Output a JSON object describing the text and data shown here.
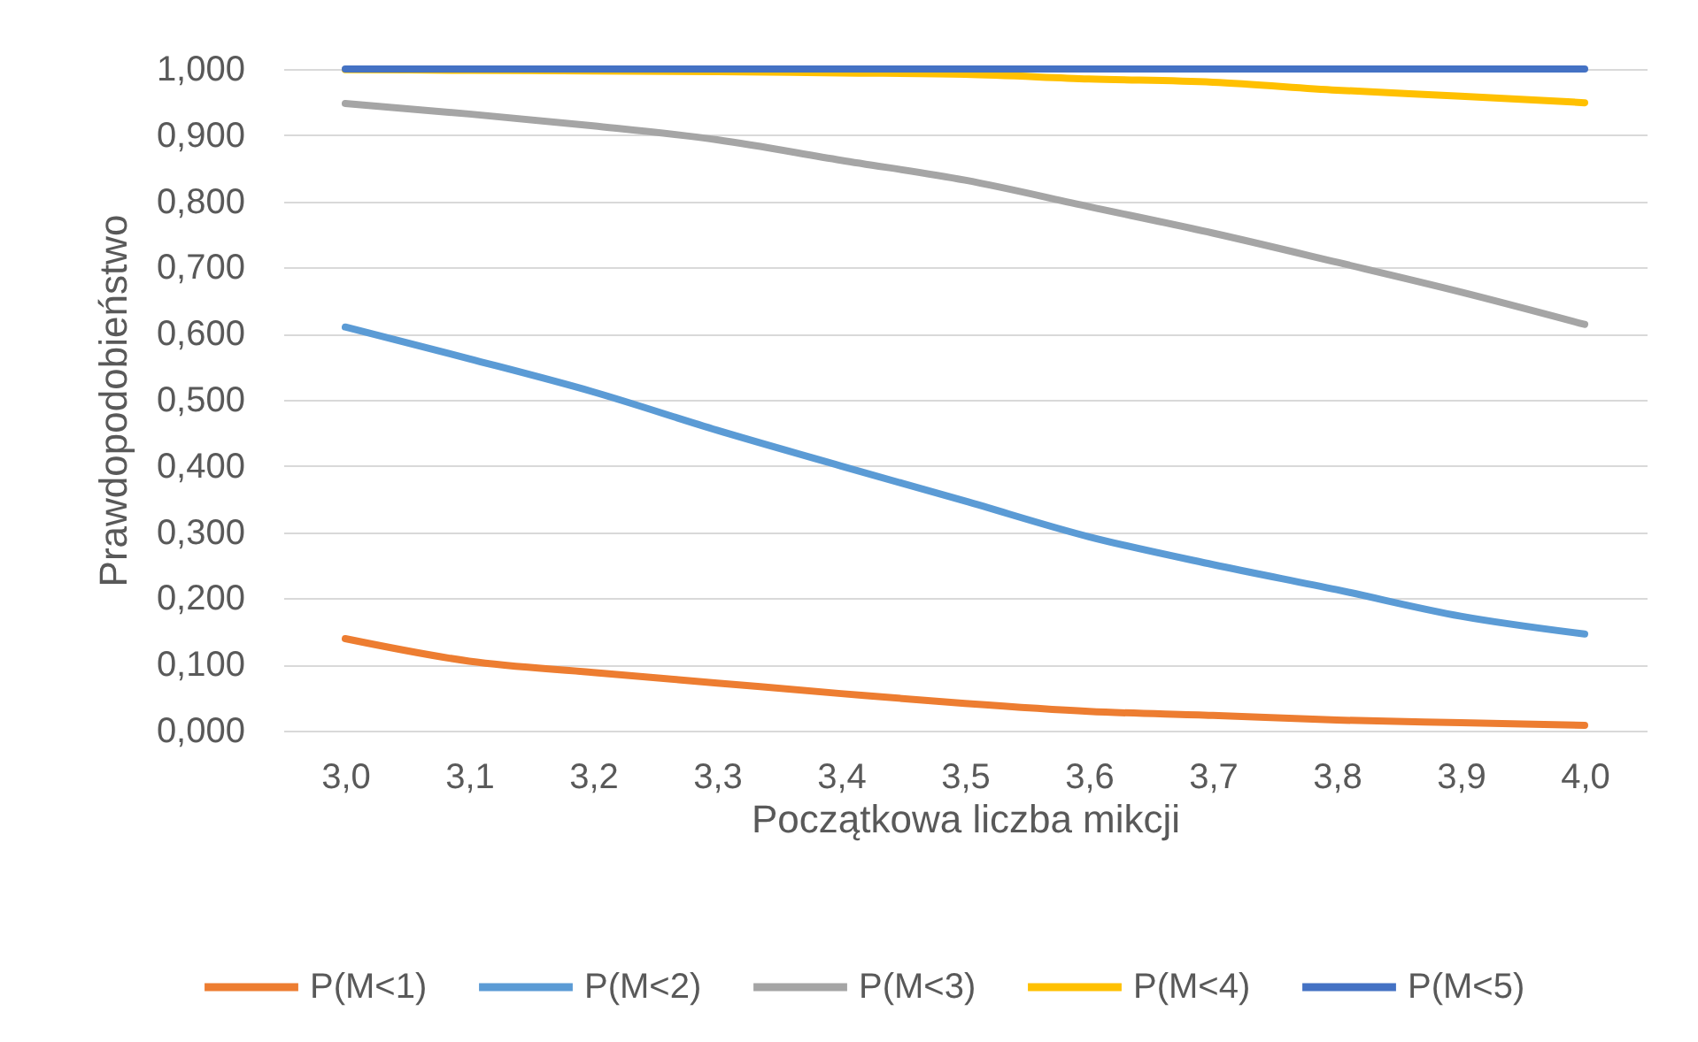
{
  "chart_data": {
    "type": "line",
    "xlabel": "Początkowa liczba mikcji",
    "ylabel": "Prawdopodobieństwo",
    "categories": [
      "3,0",
      "3,1",
      "3,2",
      "3,3",
      "3,4",
      "3,5",
      "3,6",
      "3,7",
      "3,8",
      "3,9",
      "4,0"
    ],
    "series": [
      {
        "name": "P(M<1)",
        "color": "#ed7d31",
        "values": [
          0.139,
          0.105,
          0.088,
          0.072,
          0.056,
          0.041,
          0.029,
          0.023,
          0.016,
          0.012,
          0.008
        ]
      },
      {
        "name": "P(M<2)",
        "color": "#5b9bd5",
        "values": [
          0.61,
          0.562,
          0.512,
          0.454,
          0.4,
          0.347,
          0.293,
          0.251,
          0.213,
          0.173,
          0.146
        ]
      },
      {
        "name": "P(M<3)",
        "color": "#a5a5a5",
        "values": [
          0.948,
          0.932,
          0.914,
          0.893,
          0.862,
          0.832,
          0.792,
          0.752,
          0.708,
          0.663,
          0.614
        ]
      },
      {
        "name": "P(M<4)",
        "color": "#ffc000",
        "values": [
          0.999,
          0.998,
          0.997,
          0.996,
          0.994,
          0.992,
          0.985,
          0.98,
          0.968,
          0.959,
          0.949
        ]
      },
      {
        "name": "P(M<5)",
        "color": "#4472c4",
        "values": [
          1.0,
          1.0,
          1.0,
          1.0,
          1.0,
          1.0,
          1.0,
          1.0,
          1.0,
          1.0,
          1.0
        ]
      }
    ],
    "ylim": [
      0,
      1
    ],
    "yticks": [
      {
        "value": 0,
        "label": "0,000"
      },
      {
        "value": 0.1,
        "label": "0,100"
      },
      {
        "value": 0.2,
        "label": "0,200"
      },
      {
        "value": 0.3,
        "label": "0,300"
      },
      {
        "value": 0.4,
        "label": "0,400"
      },
      {
        "value": 0.5,
        "label": "0,500"
      },
      {
        "value": 0.6,
        "label": "0,600"
      },
      {
        "value": 0.7,
        "label": "0,700"
      },
      {
        "value": 0.8,
        "label": "0,800"
      },
      {
        "value": 0.9,
        "label": "0,900"
      },
      {
        "value": 1,
        "label": "1,000"
      }
    ],
    "grid": "y",
    "legend": "bottom",
    "marker": "none",
    "line_style": "solid"
  }
}
